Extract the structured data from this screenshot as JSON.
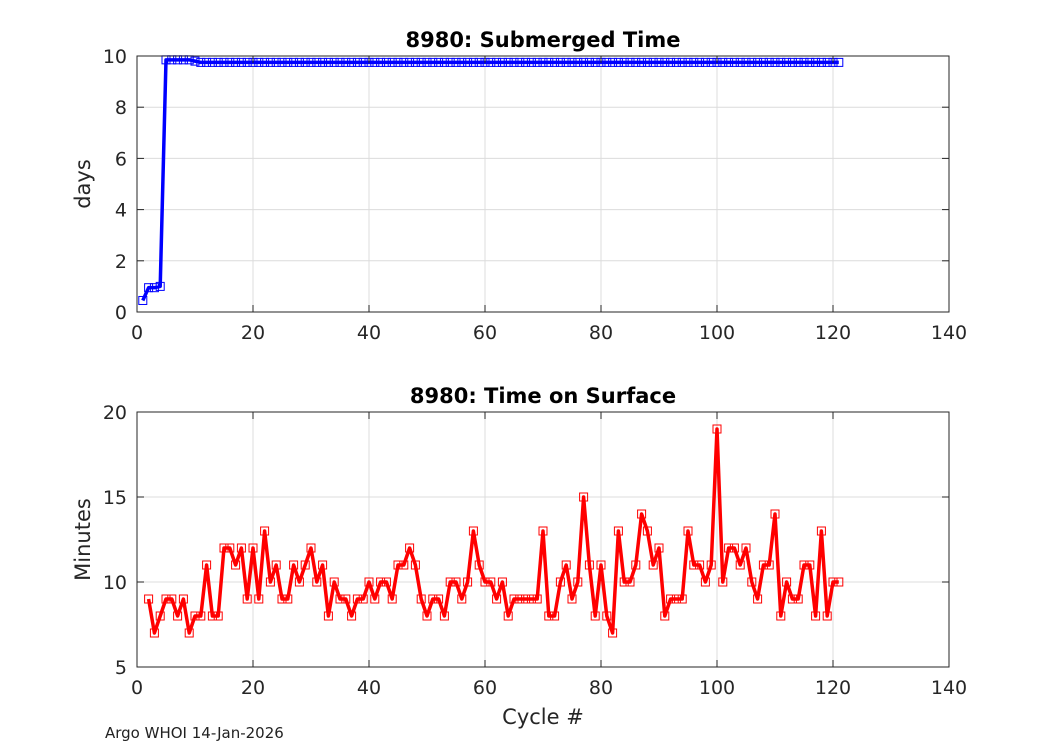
{
  "chart_data": [
    {
      "type": "line",
      "title": "8980: Submerged Time",
      "xlabel": "",
      "ylabel": "days",
      "xlim": [
        0,
        140
      ],
      "ylim": [
        0,
        10
      ],
      "xticks": [
        "0",
        "20",
        "40",
        "60",
        "80",
        "100",
        "120",
        "140"
      ],
      "yticks": [
        "0",
        "2",
        "4",
        "6",
        "8",
        "10"
      ],
      "grid": true,
      "series": [
        {
          "name": "Submerged Time",
          "color": "#0000ff",
          "marker": "square",
          "x_start": 1,
          "values": [
            0.45,
            0.95,
            0.95,
            1.0,
            9.85,
            9.85,
            9.85,
            9.85,
            9.85,
            9.8,
            9.75,
            9.75,
            9.75,
            9.75,
            9.75,
            9.75,
            9.75,
            9.75,
            9.75,
            9.75,
            9.75,
            9.75,
            9.75,
            9.75,
            9.75,
            9.75,
            9.75,
            9.75,
            9.75,
            9.75,
            9.75,
            9.75,
            9.75,
            9.75,
            9.75,
            9.75,
            9.75,
            9.75,
            9.75,
            9.75,
            9.75,
            9.75,
            9.75,
            9.75,
            9.75,
            9.75,
            9.75,
            9.75,
            9.75,
            9.75,
            9.75,
            9.75,
            9.75,
            9.75,
            9.75,
            9.75,
            9.75,
            9.75,
            9.75,
            9.75,
            9.75,
            9.75,
            9.75,
            9.75,
            9.75,
            9.75,
            9.75,
            9.75,
            9.75,
            9.75,
            9.75,
            9.75,
            9.75,
            9.75,
            9.75,
            9.75,
            9.75,
            9.75,
            9.75,
            9.75,
            9.75,
            9.75,
            9.75,
            9.75,
            9.75,
            9.75,
            9.75,
            9.75,
            9.75,
            9.75,
            9.75,
            9.75,
            9.75,
            9.75,
            9.75,
            9.75,
            9.75,
            9.75,
            9.75,
            9.75,
            9.75,
            9.75,
            9.75,
            9.75,
            9.75,
            9.75,
            9.75,
            9.75,
            9.75,
            9.75,
            9.75,
            9.75,
            9.75,
            9.75,
            9.75,
            9.75,
            9.75,
            9.75,
            9.75,
            9.75,
            9.75
          ]
        }
      ]
    },
    {
      "type": "line",
      "title": "8980: Time on Surface",
      "xlabel": "Cycle #",
      "ylabel": "Minutes",
      "xlim": [
        0,
        140
      ],
      "ylim": [
        5,
        20
      ],
      "xticks": [
        "0",
        "20",
        "40",
        "60",
        "80",
        "100",
        "120",
        "140"
      ],
      "yticks": [
        "5",
        "10",
        "15",
        "20"
      ],
      "grid": true,
      "series": [
        {
          "name": "Time on Surface",
          "color": "#ff0000",
          "marker": "square",
          "x_start": 2,
          "values": [
            9,
            7,
            8,
            9,
            9,
            8,
            9,
            7,
            8,
            8,
            11,
            8,
            8,
            12,
            12,
            11,
            12,
            9,
            12,
            9,
            13,
            10,
            11,
            9,
            9,
            11,
            10,
            11,
            12,
            10,
            11,
            8,
            10,
            9,
            9,
            8,
            9,
            9,
            10,
            9,
            10,
            10,
            9,
            11,
            11,
            12,
            11,
            9,
            8,
            9,
            9,
            8,
            10,
            10,
            9,
            10,
            13,
            11,
            10,
            10,
            9,
            10,
            8,
            9,
            9,
            9,
            9,
            9,
            13,
            8,
            8,
            10,
            11,
            9,
            10,
            15,
            11,
            8,
            11,
            8,
            7,
            13,
            10,
            10,
            11,
            14,
            13,
            11,
            12,
            8,
            9,
            9,
            9,
            13,
            11,
            11,
            10,
            11,
            19,
            10,
            12,
            12,
            11,
            12,
            10,
            9,
            11,
            11,
            14,
            8,
            10,
            9,
            9,
            11,
            11,
            8,
            13,
            8,
            10,
            10
          ]
        }
      ]
    }
  ],
  "footer": "Argo WHOI 14-Jan-2026"
}
